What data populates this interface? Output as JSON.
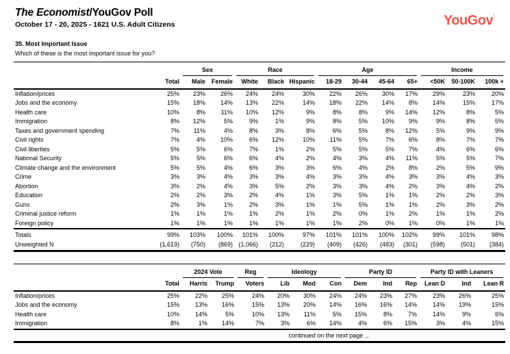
{
  "page": {
    "title_italic": "The Economist",
    "title_plain": "/YouGov Poll",
    "subtitle": "October 17 - 20, 2025 - 1621 U.S. Adult Citizens",
    "brand": {
      "logo_text": "YouGov",
      "trademark": "’",
      "logo_color": "#F0564B"
    }
  },
  "question": {
    "heading": "35. Most Important Issue",
    "text": "Which of these is the most important issue for you?"
  },
  "table1": {
    "groups": [
      {
        "label": "",
        "span": 1
      },
      {
        "label": "Sex",
        "span": 2
      },
      {
        "label": "Race",
        "span": 3
      },
      {
        "label": "Age",
        "span": 4
      },
      {
        "label": "Income",
        "span": 3
      }
    ],
    "columns": [
      "Total",
      "Male",
      "Female",
      "White",
      "Black",
      "Hispanic",
      "18-29",
      "30-44",
      "45-64",
      "65+",
      "<50K",
      "50-100K",
      "100k +"
    ],
    "rows": [
      {
        "label": "Inflation/prices",
        "values": [
          "25%",
          "23%",
          "26%",
          "24%",
          "24%",
          "30%",
          "22%",
          "26%",
          "30%",
          "17%",
          "29%",
          "23%",
          "20%"
        ]
      },
      {
        "label": "Jobs and the economy",
        "values": [
          "15%",
          "18%",
          "14%",
          "13%",
          "22%",
          "14%",
          "18%",
          "22%",
          "14%",
          "8%",
          "14%",
          "15%",
          "17%"
        ]
      },
      {
        "label": "Health care",
        "values": [
          "10%",
          "8%",
          "11%",
          "10%",
          "12%",
          "9%",
          "8%",
          "8%",
          "9%",
          "14%",
          "12%",
          "8%",
          "5%"
        ]
      },
      {
        "label": "Immigration",
        "values": [
          "8%",
          "12%",
          "5%",
          "9%",
          "1%",
          "9%",
          "8%",
          "5%",
          "10%",
          "9%",
          "9%",
          "8%",
          "5%"
        ]
      },
      {
        "label": "Taxes and government spending",
        "values": [
          "7%",
          "11%",
          "4%",
          "8%",
          "3%",
          "8%",
          "6%",
          "5%",
          "8%",
          "12%",
          "5%",
          "9%",
          "9%"
        ]
      },
      {
        "label": "Civil rights",
        "values": [
          "7%",
          "4%",
          "10%",
          "6%",
          "12%",
          "10%",
          "11%",
          "5%",
          "7%",
          "6%",
          "8%",
          "7%",
          "7%"
        ]
      },
      {
        "label": "Civil liberties",
        "values": [
          "5%",
          "5%",
          "6%",
          "7%",
          "1%",
          "2%",
          "5%",
          "5%",
          "5%",
          "7%",
          "4%",
          "6%",
          "6%"
        ]
      },
      {
        "label": "National Security",
        "values": [
          "5%",
          "5%",
          "6%",
          "6%",
          "4%",
          "2%",
          "4%",
          "3%",
          "4%",
          "11%",
          "5%",
          "5%",
          "7%"
        ]
      },
      {
        "label": "Climate change and the environment",
        "values": [
          "5%",
          "5%",
          "4%",
          "6%",
          "3%",
          "3%",
          "6%",
          "4%",
          "2%",
          "8%",
          "2%",
          "5%",
          "9%"
        ]
      },
      {
        "label": "Crime",
        "values": [
          "3%",
          "3%",
          "4%",
          "3%",
          "3%",
          "4%",
          "3%",
          "3%",
          "4%",
          "3%",
          "3%",
          "4%",
          "3%"
        ]
      },
      {
        "label": "Abortion",
        "values": [
          "3%",
          "2%",
          "4%",
          "3%",
          "5%",
          "2%",
          "3%",
          "3%",
          "4%",
          "2%",
          "3%",
          "4%",
          "2%"
        ]
      },
      {
        "label": "Education",
        "values": [
          "2%",
          "2%",
          "3%",
          "2%",
          "4%",
          "1%",
          "3%",
          "5%",
          "1%",
          "1%",
          "2%",
          "2%",
          "3%"
        ]
      },
      {
        "label": "Guns",
        "values": [
          "2%",
          "3%",
          "1%",
          "2%",
          "3%",
          "1%",
          "1%",
          "5%",
          "1%",
          "1%",
          "2%",
          "3%",
          "2%"
        ]
      },
      {
        "label": "Criminal justice reform",
        "values": [
          "1%",
          "1%",
          "1%",
          "1%",
          "2%",
          "1%",
          "2%",
          "0%",
          "1%",
          "2%",
          "1%",
          "1%",
          "2%"
        ]
      },
      {
        "label": "Foreign policy",
        "values": [
          "1%",
          "1%",
          "1%",
          "1%",
          "1%",
          "1%",
          "1%",
          "2%",
          "0%",
          "1%",
          "0%",
          "1%",
          "1%"
        ]
      }
    ],
    "totals_row": {
      "label": "Totals",
      "values": [
        "99%",
        "103%",
        "100%",
        "101%",
        "100%",
        "97%",
        "101%",
        "101%",
        "100%",
        "102%",
        "99%",
        "101%",
        "98%"
      ]
    },
    "unweighted_row": {
      "label": "Unweighted N",
      "values": [
        "(1,619)",
        "(750)",
        "(869)",
        "(1,066)",
        "(212)",
        "(229)",
        "(409)",
        "(426)",
        "(483)",
        "(301)",
        "(598)",
        "(501)",
        "(384)"
      ]
    }
  },
  "table2": {
    "groups": [
      {
        "label": "",
        "span": 1
      },
      {
        "label": "2024 Vote",
        "span": 2
      },
      {
        "label": "Reg",
        "span": 1
      },
      {
        "label": "Ideology",
        "span": 3
      },
      {
        "label": "Party ID",
        "span": 3
      },
      {
        "label": "Party ID with Leaners",
        "span": 3
      }
    ],
    "columns": [
      "Total",
      "Harris",
      "Trump",
      "Voters",
      "Lib",
      "Mod",
      "Con",
      "Dem",
      "Ind",
      "Rep",
      "Lean D",
      "Ind",
      "Lean R"
    ],
    "rows": [
      {
        "label": "Inflation/prices",
        "values": [
          "25%",
          "22%",
          "25%",
          "24%",
          "20%",
          "30%",
          "24%",
          "24%",
          "23%",
          "27%",
          "23%",
          "26%",
          "25%"
        ]
      },
      {
        "label": "Jobs and the economy",
        "values": [
          "15%",
          "13%",
          "16%",
          "15%",
          "13%",
          "20%",
          "14%",
          "16%",
          "16%",
          "14%",
          "14%",
          "19%",
          "15%"
        ]
      },
      {
        "label": "Health care",
        "values": [
          "10%",
          "14%",
          "5%",
          "10%",
          "13%",
          "11%",
          "5%",
          "15%",
          "8%",
          "7%",
          "14%",
          "9%",
          "6%"
        ]
      },
      {
        "label": "Immigration",
        "values": [
          "8%",
          "1%",
          "14%",
          "7%",
          "3%",
          "6%",
          "14%",
          "4%",
          "6%",
          "15%",
          "3%",
          "4%",
          "15%"
        ]
      }
    ]
  },
  "footer": {
    "continued": "continued on the next page ..."
  }
}
